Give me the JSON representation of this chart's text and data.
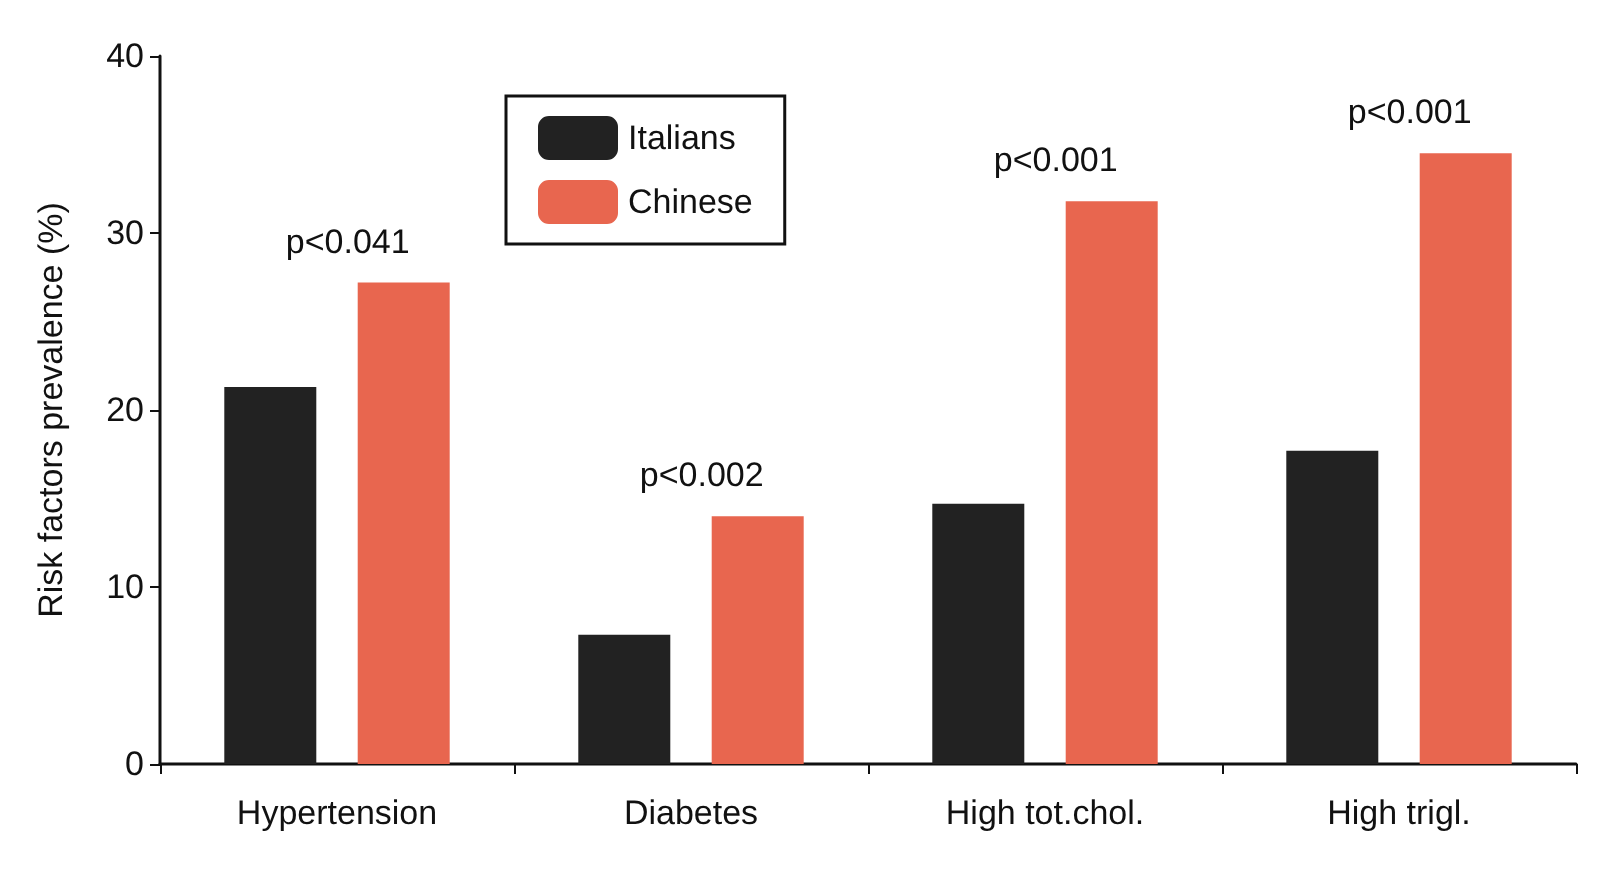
{
  "chart_data": {
    "type": "bar",
    "ylabel": "Risk factors prevalence (%)",
    "categories": [
      "Hypertension",
      "Diabetes",
      "High tot.chol.",
      "High trigl."
    ],
    "series": [
      {
        "name": "Italians",
        "color": "#222222",
        "values": [
          21.3,
          7.3,
          14.7,
          17.7
        ]
      },
      {
        "name": "Chinese",
        "color": "#e8664f",
        "values": [
          27.2,
          14.0,
          31.8,
          34.5
        ]
      }
    ],
    "ylim": [
      0,
      40
    ],
    "yticks": [
      0,
      10,
      20,
      30,
      40
    ],
    "grid": false,
    "legend": "top left",
    "annotations": [
      "p<0.041",
      "p<0.002",
      "p<0.001",
      "p<0.001"
    ]
  }
}
